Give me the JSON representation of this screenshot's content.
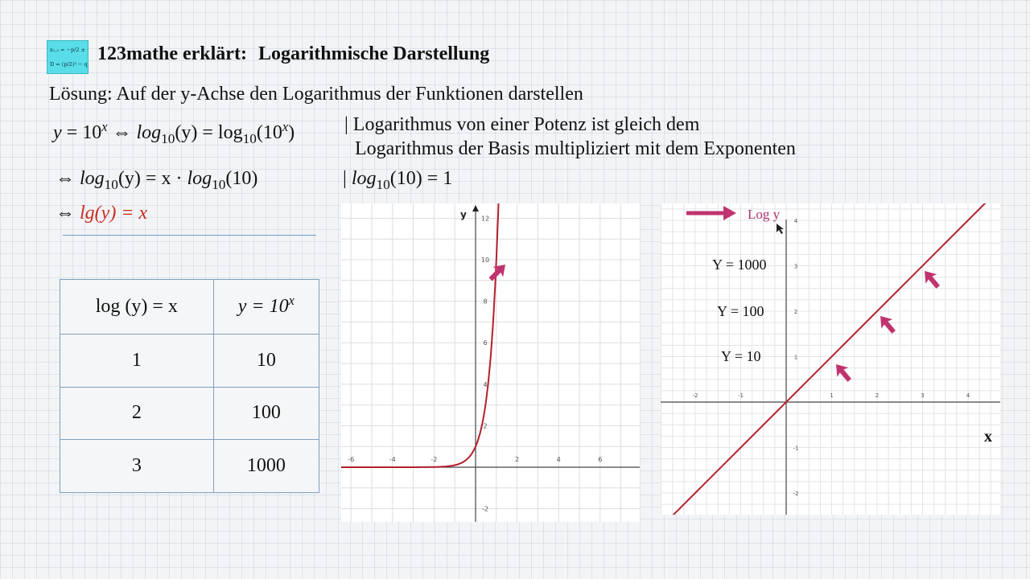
{
  "header": {
    "logo": {
      "line1": "x₁,₂ = −p/2 ± √D",
      "line2": "D = (p/2)² − q"
    },
    "brand": "123mathe erklärt:",
    "topic": "Logarithmische Darstellung"
  },
  "content": {
    "solution": "Lösung: Auf der y-Achse den Logarithmus der Funktionen darstellen",
    "eq1": {
      "y": "y",
      "eq": " = 10",
      "x": "x",
      "iff": " ⇔ ",
      "log": "log",
      "base": "10",
      "arg_y": "(y)",
      "rhs": " = log",
      "rhs_base": "10",
      "rhs_open": "(10",
      "rhs_exp": "x",
      "rhs_close": ")"
    },
    "note1": "| Logarithmus von einer Potenz ist gleich dem",
    "note2": "Logarithmus der Basis multipliziert mit dem Exponenten",
    "eq2": {
      "iff": "⇔ ",
      "log": "log",
      "base": "10",
      "arg": "(y) = x · ",
      "log2": "log",
      "base2": "10",
      "arg2": "(10)"
    },
    "eq2_note": {
      "bar": "| ",
      "log": "log",
      "base": "10",
      "rest": "(10) = 1"
    },
    "eq3": {
      "iff": "⇔ ",
      "expr": "lg(y) = x"
    }
  },
  "table": {
    "headers": [
      "log (y) = x",
      "y = 10",
      "x"
    ],
    "rows": [
      [
        "1",
        "10"
      ],
      [
        "2",
        "100"
      ],
      [
        "3",
        "1000"
      ]
    ]
  },
  "graph_left": {
    "function": "y = 10^x",
    "axis_y_label": "y",
    "x_ticks": [
      "-6",
      "-4",
      "-2",
      "2",
      "4",
      "6"
    ],
    "y_ticks": [
      "12",
      "10",
      "8",
      "6",
      "4",
      "2",
      "-2"
    ],
    "curve_color": "#b3202a"
  },
  "graph_right": {
    "function": "lg(y) = x",
    "axis_y_label": "Log y",
    "axis_x_label": "x",
    "x_ticks": [
      "-2",
      "-1",
      "1",
      "2",
      "3",
      "4"
    ],
    "y_ticks": [
      "4",
      "3",
      "2",
      "1",
      "-1",
      "-2"
    ],
    "annotations": [
      "Y = 1000",
      "Y = 100",
      "Y = 10"
    ],
    "line_color": "#b3202a",
    "arrow_color": "#c0336f"
  }
}
